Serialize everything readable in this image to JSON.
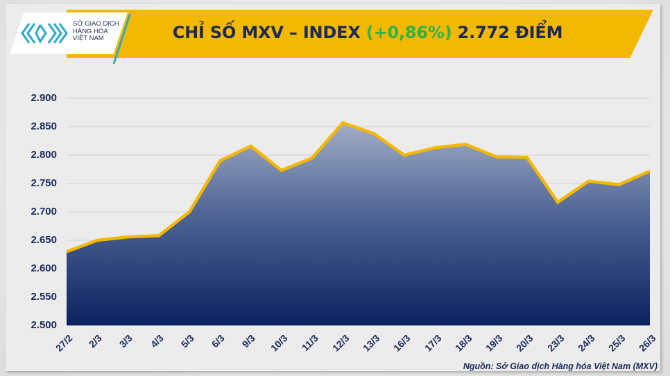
{
  "header": {
    "logo_lines": [
      "SỞ GIAO DỊCH",
      "HÀNG HÓA",
      "VIỆT NAM"
    ],
    "title_prefix": "CHỈ SỐ MXV – INDEX ",
    "title_change": "(+0,86%)",
    "title_suffix": " 2.772 ĐIỂM"
  },
  "source": "Nguồn: Sở Giao dịch Hàng hóa Việt Nam (MXV)",
  "colors": {
    "banner": "#f3b800",
    "text_navy": "#1b2a5a",
    "change_green": "#2eb34a",
    "line": "#f5b800",
    "area_top": "#9aa6c2",
    "area_bottom": "#0d2463",
    "logo_blue": "#2aa7c9"
  },
  "chart_data": {
    "type": "area",
    "title": "CHỈ SỐ MXV – INDEX (+0,86%) 2.772 ĐIỂM",
    "xlabel": "",
    "ylabel": "",
    "categories": [
      "27/2",
      "2/3",
      "3/3",
      "4/3",
      "5/3",
      "6/3",
      "9/3",
      "10/3",
      "11/3",
      "12/3",
      "13/3",
      "16/3",
      "17/3",
      "18/3",
      "19/3",
      "20/3",
      "23/3",
      "24/3",
      "25/3",
      "26/3"
    ],
    "series": [
      {
        "name": "MXV-Index",
        "values": [
          2630,
          2650,
          2656,
          2658,
          2700,
          2790,
          2816,
          2773,
          2795,
          2857,
          2838,
          2800,
          2813,
          2819,
          2797,
          2796,
          2717,
          2754,
          2748,
          2772
        ]
      }
    ],
    "ylim": [
      2500,
      2900
    ],
    "yticks": [
      "2.500",
      "2.550",
      "2.600",
      "2.650",
      "2.700",
      "2.750",
      "2.800",
      "2.850",
      "2.900"
    ],
    "ytick_values": [
      2500,
      2550,
      2600,
      2650,
      2700,
      2750,
      2800,
      2850,
      2900
    ],
    "grid": true,
    "legend": "none"
  }
}
